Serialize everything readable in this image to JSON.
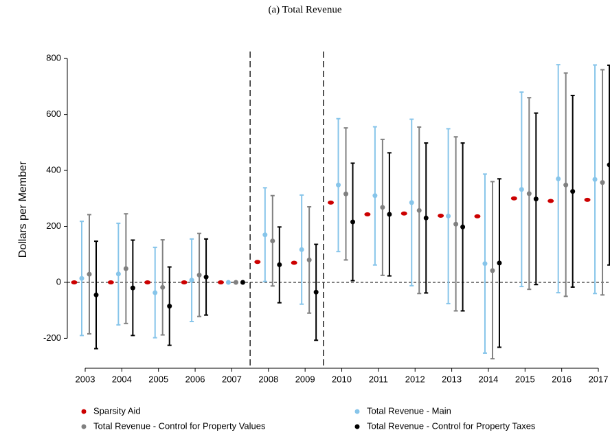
{
  "chart_data": {
    "type": "errorbar",
    "title": "(a) Total Revenue",
    "y_label": "Dollars per Member",
    "categories": [
      "2003",
      "2004",
      "2005",
      "2006",
      "2007",
      "2008",
      "2009",
      "2010",
      "2011",
      "2012",
      "2013",
      "2014",
      "2015",
      "2016",
      "2017"
    ],
    "ylim": [
      -307,
      825
    ],
    "yticks": [
      -200,
      0,
      200,
      400,
      600,
      800
    ],
    "series": [
      {
        "name": "Sparsity Aid",
        "color": "#cc0000",
        "values": [
          0,
          0,
          0,
          0,
          0,
          73,
          70,
          285,
          243,
          246,
          238,
          236,
          300,
          291,
          295
        ]
      },
      {
        "name": "Total Revenue - Main",
        "color": "#87c5ea",
        "values": [
          14,
          30,
          -37,
          8,
          0,
          170,
          117,
          348,
          310,
          285,
          237,
          67,
          332,
          370,
          368
        ],
        "lower": [
          -190,
          -152,
          -198,
          -140,
          null,
          3,
          -78,
          110,
          62,
          -12,
          -76,
          -253,
          -15,
          -37,
          -40
        ],
        "upper": [
          218,
          211,
          125,
          155,
          null,
          338,
          312,
          585,
          556,
          583,
          549,
          387,
          680,
          778,
          777
        ]
      },
      {
        "name": "Total Revenue - Control for Property Values",
        "color": "#808080",
        "values": [
          29,
          49,
          -18,
          26,
          0,
          148,
          80,
          316,
          268,
          257,
          208,
          42,
          317,
          348,
          357
        ],
        "lower": [
          -184,
          -147,
          -188,
          -122,
          null,
          -13,
          -110,
          80,
          25,
          -40,
          -102,
          -273,
          -25,
          -50,
          -45
        ],
        "upper": [
          242,
          245,
          152,
          175,
          null,
          310,
          270,
          552,
          511,
          555,
          520,
          360,
          660,
          748,
          760
        ]
      },
      {
        "name": "Total Revenue - Control for Property Taxes",
        "color": "#000000",
        "values": [
          -45,
          -20,
          -85,
          19,
          0,
          63,
          -35,
          216,
          243,
          230,
          198,
          69,
          298,
          325,
          420
        ],
        "lower": [
          -237,
          -190,
          -225,
          -117,
          null,
          -73,
          -207,
          6,
          23,
          -38,
          -102,
          -232,
          -8,
          -17,
          62
        ],
        "upper": [
          147,
          151,
          55,
          155,
          null,
          198,
          136,
          426,
          463,
          498,
          498,
          370,
          605,
          668,
          776
        ]
      }
    ]
  }
}
